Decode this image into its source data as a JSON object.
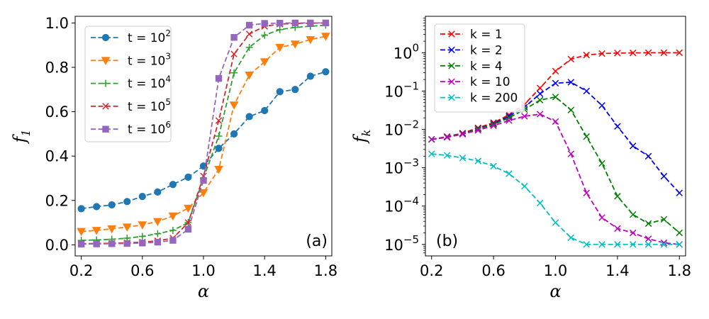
{
  "chart_data": [
    {
      "type": "line",
      "panel_label": "(a)",
      "xlabel": "α",
      "ylabel": "f",
      "ylabel_sub": "1",
      "yscale": "linear",
      "xlim": [
        0.16,
        1.84
      ],
      "ylim": [
        -0.05,
        1.03
      ],
      "xticks": [
        0.2,
        0.6,
        1.0,
        1.4,
        1.8
      ],
      "xtick_labels": [
        "0.2",
        "0.6",
        "1.0",
        "1.4",
        "1.8"
      ],
      "yticks": [
        0.0,
        0.2,
        0.4,
        0.6,
        0.8,
        1.0
      ],
      "ytick_labels": [
        "0.0",
        "0.2",
        "0.4",
        "0.6",
        "0.8",
        "1.0"
      ],
      "legend_position": "top-left",
      "x": [
        0.2,
        0.3,
        0.4,
        0.5,
        0.6,
        0.7,
        0.8,
        0.9,
        1.0,
        1.1,
        1.2,
        1.3,
        1.4,
        1.5,
        1.6,
        1.7,
        1.8
      ],
      "series": [
        {
          "name": "t = 10^2",
          "label_base": "t = 10",
          "label_exp": "2",
          "color": "#1f77b4",
          "marker": "circle",
          "values": [
            0.163,
            0.172,
            0.18,
            0.195,
            0.218,
            0.238,
            0.272,
            0.305,
            0.355,
            0.435,
            0.5,
            0.578,
            0.605,
            0.69,
            0.7,
            0.76,
            0.78
          ]
        },
        {
          "name": "t = 10^3",
          "label_base": "t = 10",
          "label_exp": "3",
          "color": "#ff7f0e",
          "marker": "triangle-down",
          "values": [
            0.06,
            0.065,
            0.072,
            0.08,
            0.09,
            0.105,
            0.13,
            0.165,
            0.235,
            0.34,
            0.63,
            0.765,
            0.825,
            0.89,
            0.905,
            0.925,
            0.94
          ]
        },
        {
          "name": "t = 10^4",
          "label_base": "t = 10",
          "label_exp": "4",
          "color": "#2ca02c",
          "marker": "plus",
          "values": [
            0.02,
            0.022,
            0.025,
            0.03,
            0.038,
            0.05,
            0.065,
            0.1,
            0.3,
            0.49,
            0.775,
            0.89,
            0.945,
            0.97,
            0.98,
            0.985,
            0.99
          ]
        },
        {
          "name": "t = 10^5",
          "label_base": "t = 10",
          "label_exp": "5",
          "color": "#d62728",
          "marker": "x",
          "values": [
            0.005,
            0.006,
            0.007,
            0.009,
            0.012,
            0.018,
            0.03,
            0.1,
            0.31,
            0.56,
            0.86,
            0.95,
            0.985,
            0.995,
            0.998,
            0.999,
            1.0
          ]
        },
        {
          "name": "t = 10^6",
          "label_base": "t = 10",
          "label_exp": "6",
          "color": "#9467bd",
          "marker": "square",
          "values": [
            0.003,
            0.004,
            0.005,
            0.006,
            0.008,
            0.012,
            0.02,
            0.07,
            0.29,
            0.75,
            0.935,
            0.99,
            0.998,
            0.999,
            1.0,
            1.0,
            1.0
          ]
        }
      ]
    },
    {
      "type": "line",
      "panel_label": "(b)",
      "xlabel": "α",
      "ylabel": "f",
      "ylabel_sub": "k",
      "yscale": "log",
      "xlim": [
        0.16,
        1.84
      ],
      "ylim_log10": [
        -5.3,
        0.95
      ],
      "xticks": [
        0.2,
        0.6,
        1.0,
        1.4,
        1.8
      ],
      "xtick_labels": [
        "0.2",
        "0.6",
        "1.0",
        "1.4",
        "1.8"
      ],
      "yticks_log10": [
        0,
        -1,
        -2,
        -3,
        -4,
        -5
      ],
      "ytick_base": "10",
      "ytick_exps": [
        "0",
        "−1",
        "−2",
        "−3",
        "−4",
        "−5"
      ],
      "legend_position": "top-left",
      "x": [
        0.2,
        0.3,
        0.4,
        0.5,
        0.6,
        0.7,
        0.8,
        0.9,
        1.0,
        1.1,
        1.2,
        1.3,
        1.4,
        1.5,
        1.6,
        1.7,
        1.8
      ],
      "series": [
        {
          "name": "k = 1",
          "label": "k = 1",
          "color": "#ff0000",
          "marker": "x",
          "values": [
            0.0055,
            0.0065,
            0.008,
            0.011,
            0.015,
            0.024,
            0.045,
            0.12,
            0.33,
            0.68,
            0.87,
            0.95,
            0.98,
            0.99,
            1.0,
            1.0,
            1.0
          ]
        },
        {
          "name": "k = 2",
          "label": "k = 2",
          "color": "#0000ff",
          "marker": "x",
          "values": [
            0.0055,
            0.0063,
            0.0078,
            0.0105,
            0.014,
            0.022,
            0.038,
            0.085,
            0.16,
            0.17,
            0.1,
            0.042,
            0.012,
            0.0037,
            0.002,
            0.0006,
            0.00022
          ]
        },
        {
          "name": "k = 4",
          "label": "k = 4",
          "color": "#008000",
          "marker": "x",
          "values": [
            0.0055,
            0.0063,
            0.0077,
            0.0103,
            0.0135,
            0.02,
            0.033,
            0.058,
            0.07,
            0.032,
            0.0065,
            0.0013,
            0.00018,
            6e-05,
            3.5e-05,
            4.5e-05,
            2e-05
          ]
        },
        {
          "name": "k = 10",
          "label": "k = 10",
          "color": "#bf00bf",
          "marker": "x",
          "values": [
            0.0055,
            0.0062,
            0.0075,
            0.0095,
            0.0125,
            0.017,
            0.022,
            0.025,
            0.016,
            0.0023,
            0.00022,
            5e-05,
            2.6e-05,
            2e-05,
            1.4e-05,
            1.1e-05,
            1e-05
          ]
        },
        {
          "name": "k = 200",
          "label": "k = 200",
          "color": "#00bfbf",
          "marker": "x",
          "values": [
            0.0023,
            0.0021,
            0.0018,
            0.0015,
            0.0011,
            0.0007,
            0.00033,
            0.00012,
            3.7e-05,
            1.5e-05,
            1e-05,
            1e-05,
            1e-05,
            1e-05,
            1e-05,
            1e-05,
            1e-05
          ]
        }
      ]
    }
  ]
}
